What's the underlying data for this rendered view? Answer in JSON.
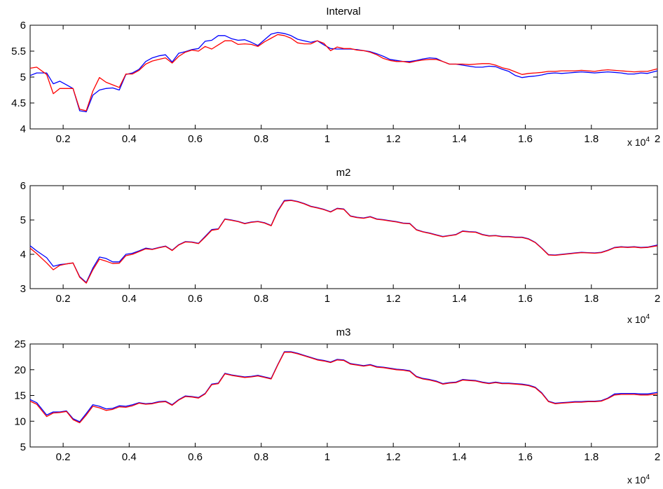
{
  "chart_data": [
    {
      "type": "line",
      "title": "Interval",
      "xlim": [
        1000,
        20000
      ],
      "ylim": [
        4,
        6
      ],
      "xticks": [
        2000,
        4000,
        6000,
        8000,
        10000,
        12000,
        14000,
        16000,
        18000,
        20000
      ],
      "xtick_labels": [
        "0.2",
        "0.4",
        "0.6",
        "0.8",
        "1",
        "1.2",
        "1.4",
        "1.6",
        "1.8",
        "2"
      ],
      "yticks": [
        4,
        4.5,
        5,
        5.5,
        6
      ],
      "ytick_labels": [
        "4",
        "4.5",
        "5",
        "5.5",
        "6"
      ],
      "x_multiplier": {
        "base": "x 10",
        "exponent": "4"
      },
      "x": [
        1000,
        1200,
        1500,
        1700,
        1900,
        2100,
        2300,
        2500,
        2700,
        2900,
        3100,
        3300,
        3500,
        3700,
        3900,
        4100,
        4300,
        4500,
        4700,
        4900,
        5100,
        5300,
        5500,
        5700,
        5900,
        6100,
        6300,
        6500,
        6700,
        6900,
        7100,
        7300,
        7500,
        7700,
        7900,
        8100,
        8300,
        8500,
        8700,
        8900,
        9100,
        9300,
        9500,
        9700,
        9900,
        10100,
        10300,
        10500,
        10700,
        10900,
        11100,
        11300,
        11500,
        11700,
        11900,
        12100,
        12300,
        12500,
        12700,
        12900,
        13100,
        13300,
        13500,
        13700,
        13900,
        14100,
        14300,
        14500,
        14700,
        14900,
        15100,
        15300,
        15500,
        15700,
        15900,
        16100,
        16300,
        16500,
        16700,
        16900,
        17100,
        17300,
        17500,
        17700,
        17900,
        18100,
        18300,
        18500,
        18700,
        18900,
        19100,
        19300,
        19500,
        19700,
        20000
      ],
      "series": [
        {
          "color": "#0000ff",
          "values": [
            5.03,
            5.08,
            5.08,
            4.87,
            4.92,
            4.85,
            4.78,
            4.35,
            4.33,
            4.65,
            4.75,
            4.78,
            4.79,
            4.75,
            5.05,
            5.08,
            5.15,
            5.3,
            5.37,
            5.41,
            5.43,
            5.29,
            5.46,
            5.49,
            5.53,
            5.55,
            5.69,
            5.71,
            5.8,
            5.8,
            5.74,
            5.71,
            5.72,
            5.67,
            5.61,
            5.72,
            5.83,
            5.86,
            5.84,
            5.8,
            5.73,
            5.7,
            5.67,
            5.7,
            5.62,
            5.55,
            5.54,
            5.54,
            5.54,
            5.53,
            5.51,
            5.49,
            5.45,
            5.4,
            5.34,
            5.32,
            5.3,
            5.3,
            5.32,
            5.35,
            5.37,
            5.36,
            5.3,
            5.25,
            5.25,
            5.23,
            5.21,
            5.19,
            5.19,
            5.21,
            5.2,
            5.15,
            5.11,
            5.03,
            4.99,
            5.01,
            5.02,
            5.04,
            5.07,
            5.08,
            5.07,
            5.08,
            5.09,
            5.1,
            5.09,
            5.08,
            5.09,
            5.1,
            5.09,
            5.08,
            5.06,
            5.06,
            5.08,
            5.07,
            5.12
          ]
        },
        {
          "color": "#ff0000",
          "values": [
            5.17,
            5.19,
            5.05,
            4.68,
            4.78,
            4.78,
            4.78,
            4.38,
            4.35,
            4.73,
            4.99,
            4.9,
            4.85,
            4.8,
            5.06,
            5.06,
            5.13,
            5.25,
            5.31,
            5.34,
            5.37,
            5.27,
            5.4,
            5.48,
            5.52,
            5.5,
            5.59,
            5.54,
            5.62,
            5.7,
            5.7,
            5.63,
            5.64,
            5.63,
            5.59,
            5.68,
            5.75,
            5.82,
            5.8,
            5.75,
            5.66,
            5.64,
            5.64,
            5.7,
            5.65,
            5.51,
            5.58,
            5.55,
            5.55,
            5.52,
            5.51,
            5.48,
            5.43,
            5.36,
            5.32,
            5.3,
            5.3,
            5.28,
            5.31,
            5.33,
            5.34,
            5.34,
            5.3,
            5.25,
            5.25,
            5.25,
            5.24,
            5.25,
            5.26,
            5.26,
            5.23,
            5.18,
            5.15,
            5.1,
            5.05,
            5.07,
            5.08,
            5.09,
            5.11,
            5.11,
            5.12,
            5.12,
            5.12,
            5.13,
            5.12,
            5.11,
            5.13,
            5.14,
            5.13,
            5.12,
            5.11,
            5.1,
            5.11,
            5.11,
            5.16
          ]
        }
      ]
    },
    {
      "type": "line",
      "title": "m2",
      "xlim": [
        1000,
        20000
      ],
      "ylim": [
        3,
        6
      ],
      "xticks": [
        2000,
        4000,
        6000,
        8000,
        10000,
        12000,
        14000,
        16000,
        18000,
        20000
      ],
      "xtick_labels": [
        "0.2",
        "0.4",
        "0.6",
        "0.8",
        "1",
        "1.2",
        "1.4",
        "1.6",
        "1.8",
        "2"
      ],
      "yticks": [
        3,
        4,
        5,
        6
      ],
      "ytick_labels": [
        "3",
        "4",
        "5",
        "6"
      ],
      "x_multiplier": {
        "base": "x 10",
        "exponent": "4"
      },
      "x": [
        1000,
        1200,
        1500,
        1700,
        1900,
        2100,
        2300,
        2500,
        2700,
        2900,
        3100,
        3300,
        3500,
        3700,
        3900,
        4100,
        4300,
        4500,
        4700,
        4900,
        5100,
        5300,
        5500,
        5700,
        5900,
        6100,
        6300,
        6500,
        6700,
        6900,
        7100,
        7300,
        7500,
        7700,
        7900,
        8100,
        8300,
        8500,
        8700,
        8900,
        9100,
        9300,
        9500,
        9700,
        9900,
        10100,
        10300,
        10500,
        10700,
        10900,
        11100,
        11300,
        11500,
        11700,
        11900,
        12100,
        12300,
        12500,
        12700,
        12900,
        13100,
        13300,
        13500,
        13700,
        13900,
        14100,
        14300,
        14500,
        14700,
        14900,
        15100,
        15300,
        15500,
        15700,
        15900,
        16100,
        16300,
        16500,
        16700,
        16900,
        17100,
        17300,
        17500,
        17700,
        17900,
        18100,
        18300,
        18500,
        18700,
        18900,
        19100,
        19300,
        19500,
        19700,
        20000
      ],
      "series": [
        {
          "color": "#0000ff",
          "values": [
            4.25,
            4.1,
            3.9,
            3.65,
            3.7,
            3.72,
            3.75,
            3.35,
            3.18,
            3.6,
            3.92,
            3.88,
            3.78,
            3.78,
            4.0,
            4.03,
            4.1,
            4.18,
            4.15,
            4.2,
            4.24,
            4.12,
            4.28,
            4.37,
            4.36,
            4.32,
            4.52,
            4.72,
            4.74,
            5.03,
            5.0,
            4.96,
            4.9,
            4.94,
            4.96,
            4.92,
            4.84,
            5.27,
            5.57,
            5.58,
            5.54,
            5.48,
            5.4,
            5.36,
            5.31,
            5.24,
            5.34,
            5.32,
            5.12,
            5.08,
            5.06,
            5.1,
            5.03,
            5.01,
            4.98,
            4.95,
            4.91,
            4.9,
            4.72,
            4.66,
            4.62,
            4.57,
            4.52,
            4.55,
            4.58,
            4.68,
            4.66,
            4.65,
            4.58,
            4.54,
            4.55,
            4.52,
            4.52,
            4.5,
            4.5,
            4.45,
            4.35,
            4.18,
            3.99,
            3.98,
            4.0,
            4.02,
            4.04,
            4.06,
            4.05,
            4.04,
            4.06,
            4.12,
            4.2,
            4.22,
            4.21,
            4.22,
            4.2,
            4.21,
            4.27
          ]
        },
        {
          "color": "#ff0000",
          "values": [
            4.18,
            4.02,
            3.75,
            3.55,
            3.68,
            3.72,
            3.75,
            3.33,
            3.16,
            3.55,
            3.86,
            3.8,
            3.73,
            3.74,
            3.96,
            4.0,
            4.08,
            4.16,
            4.14,
            4.19,
            4.23,
            4.11,
            4.27,
            4.36,
            4.35,
            4.31,
            4.5,
            4.7,
            4.73,
            5.02,
            4.99,
            4.95,
            4.89,
            4.93,
            4.95,
            4.91,
            4.83,
            5.25,
            5.55,
            5.57,
            5.53,
            5.47,
            5.39,
            5.35,
            5.3,
            5.23,
            5.33,
            5.31,
            5.11,
            5.07,
            5.05,
            5.09,
            5.02,
            5.0,
            4.97,
            4.94,
            4.9,
            4.89,
            4.71,
            4.65,
            4.61,
            4.56,
            4.51,
            4.54,
            4.57,
            4.67,
            4.65,
            4.64,
            4.57,
            4.53,
            4.54,
            4.51,
            4.51,
            4.49,
            4.49,
            4.44,
            4.34,
            4.17,
            3.98,
            3.97,
            3.99,
            4.01,
            4.03,
            4.05,
            4.04,
            4.03,
            4.05,
            4.11,
            4.19,
            4.21,
            4.2,
            4.21,
            4.19,
            4.2,
            4.25
          ]
        }
      ]
    },
    {
      "type": "line",
      "title": "m3",
      "xlim": [
        1000,
        20000
      ],
      "ylim": [
        5,
        25
      ],
      "xticks": [
        2000,
        4000,
        6000,
        8000,
        10000,
        12000,
        14000,
        16000,
        18000,
        20000
      ],
      "xtick_labels": [
        "0.2",
        "0.4",
        "0.6",
        "0.8",
        "1",
        "1.2",
        "1.4",
        "1.6",
        "1.8",
        "2"
      ],
      "yticks": [
        5,
        10,
        15,
        20,
        25
      ],
      "ytick_labels": [
        "5",
        "10",
        "15",
        "20",
        "25"
      ],
      "x_multiplier": {
        "base": "x 10",
        "exponent": "4"
      },
      "x": [
        1000,
        1200,
        1500,
        1700,
        1900,
        2100,
        2300,
        2500,
        2700,
        2900,
        3100,
        3300,
        3500,
        3700,
        3900,
        4100,
        4300,
        4500,
        4700,
        4900,
        5100,
        5300,
        5500,
        5700,
        5900,
        6100,
        6300,
        6500,
        6700,
        6900,
        7100,
        7300,
        7500,
        7700,
        7900,
        8100,
        8300,
        8500,
        8700,
        8900,
        9100,
        9300,
        9500,
        9700,
        9900,
        10100,
        10300,
        10500,
        10700,
        10900,
        11100,
        11300,
        11500,
        11700,
        11900,
        12100,
        12300,
        12500,
        12700,
        12900,
        13100,
        13300,
        13500,
        13700,
        13900,
        14100,
        14300,
        14500,
        14700,
        14900,
        15100,
        15300,
        15500,
        15700,
        15900,
        16100,
        16300,
        16500,
        16700,
        16900,
        17100,
        17300,
        17500,
        17700,
        17900,
        18100,
        18300,
        18500,
        18700,
        18900,
        19100,
        19300,
        19500,
        19700,
        20000
      ],
      "series": [
        {
          "color": "#0000ff",
          "values": [
            14.2,
            13.6,
            11.2,
            11.8,
            11.8,
            12.0,
            10.5,
            9.9,
            11.5,
            13.2,
            12.9,
            12.4,
            12.5,
            13.0,
            12.9,
            13.2,
            13.6,
            13.4,
            13.5,
            13.8,
            13.9,
            13.2,
            14.2,
            14.9,
            14.8,
            14.6,
            15.4,
            17.2,
            17.4,
            19.3,
            19.0,
            18.8,
            18.6,
            18.7,
            18.9,
            18.6,
            18.3,
            21.0,
            23.5,
            23.5,
            23.2,
            22.8,
            22.4,
            22.0,
            21.8,
            21.5,
            22.0,
            21.9,
            21.2,
            21.0,
            20.8,
            21.0,
            20.6,
            20.5,
            20.3,
            20.1,
            20.0,
            19.8,
            18.7,
            18.3,
            18.1,
            17.8,
            17.3,
            17.5,
            17.6,
            18.1,
            18.0,
            17.9,
            17.6,
            17.4,
            17.6,
            17.4,
            17.4,
            17.3,
            17.2,
            17.0,
            16.6,
            15.5,
            13.9,
            13.5,
            13.6,
            13.7,
            13.8,
            13.8,
            13.9,
            13.9,
            14.0,
            14.5,
            15.3,
            15.4,
            15.4,
            15.4,
            15.3,
            15.3,
            15.6
          ]
        },
        {
          "color": "#ff0000",
          "values": [
            13.9,
            13.3,
            10.9,
            11.6,
            11.7,
            11.9,
            10.3,
            9.7,
            11.2,
            12.9,
            12.6,
            12.1,
            12.3,
            12.8,
            12.7,
            13.0,
            13.5,
            13.3,
            13.4,
            13.7,
            13.8,
            13.1,
            14.1,
            14.8,
            14.7,
            14.5,
            15.3,
            17.1,
            17.3,
            19.2,
            18.9,
            18.7,
            18.5,
            18.6,
            18.8,
            18.5,
            18.2,
            20.9,
            23.4,
            23.4,
            23.1,
            22.7,
            22.3,
            21.9,
            21.7,
            21.4,
            21.9,
            21.8,
            21.1,
            20.9,
            20.7,
            20.9,
            20.5,
            20.4,
            20.2,
            20.0,
            19.9,
            19.7,
            18.6,
            18.2,
            18.0,
            17.7,
            17.2,
            17.4,
            17.5,
            18.0,
            17.9,
            17.8,
            17.5,
            17.3,
            17.5,
            17.3,
            17.3,
            17.2,
            17.1,
            16.9,
            16.5,
            15.4,
            13.8,
            13.4,
            13.5,
            13.6,
            13.7,
            13.7,
            13.8,
            13.8,
            13.9,
            14.4,
            15.1,
            15.2,
            15.2,
            15.2,
            15.1,
            15.1,
            15.3
          ]
        }
      ]
    }
  ]
}
